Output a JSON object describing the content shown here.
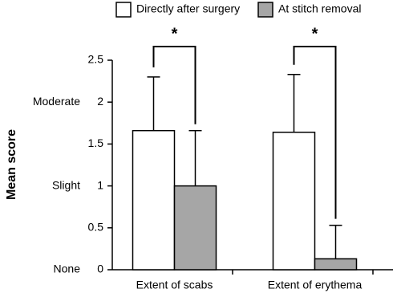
{
  "chart_data": {
    "type": "bar",
    "y_label": "Mean score",
    "categories": [
      "Extent of scabs",
      "Extent of erythema"
    ],
    "series": [
      {
        "name": "Directly after surgery",
        "color": "#ffffff",
        "values": [
          1.66,
          1.64
        ],
        "errors": [
          0.64,
          0.69
        ]
      },
      {
        "name": "At stitch removal",
        "color": "#a6a6a6",
        "values": [
          1.0,
          0.13
        ],
        "errors": [
          0.66,
          0.4
        ]
      }
    ],
    "ylim": [
      0,
      2.5
    ],
    "yticks": [
      0,
      0.5,
      1,
      1.5,
      2,
      2.5
    ],
    "y_score_ticks": [
      {
        "value": 0,
        "label": "None"
      },
      {
        "value": 1,
        "label": "Slight"
      },
      {
        "value": 2,
        "label": "Moderate"
      }
    ],
    "significance": [
      "*",
      "*"
    ]
  }
}
